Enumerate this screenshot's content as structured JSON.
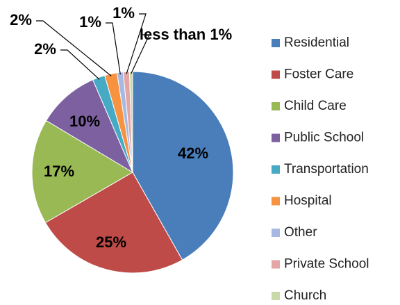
{
  "chart_data": {
    "type": "pie",
    "categories": [
      "Residential",
      "Foster Care",
      "Child Care",
      "Public School",
      "Transportation",
      "Hospital",
      "Other",
      "Private School",
      "Church"
    ],
    "values": [
      42,
      25,
      17,
      10,
      2,
      2,
      1,
      1,
      0.5
    ],
    "value_labels": [
      "42%",
      "25%",
      "17%",
      "10%",
      "2%",
      "2%",
      "1%",
      "1%",
      "less than 1%"
    ],
    "colors": [
      "#4a7ebb",
      "#be4b48",
      "#98b954",
      "#7d60a0",
      "#46aac5",
      "#f69240",
      "#a7b9e3",
      "#e3a6a5",
      "#c7daa8"
    ],
    "legend": "right"
  }
}
